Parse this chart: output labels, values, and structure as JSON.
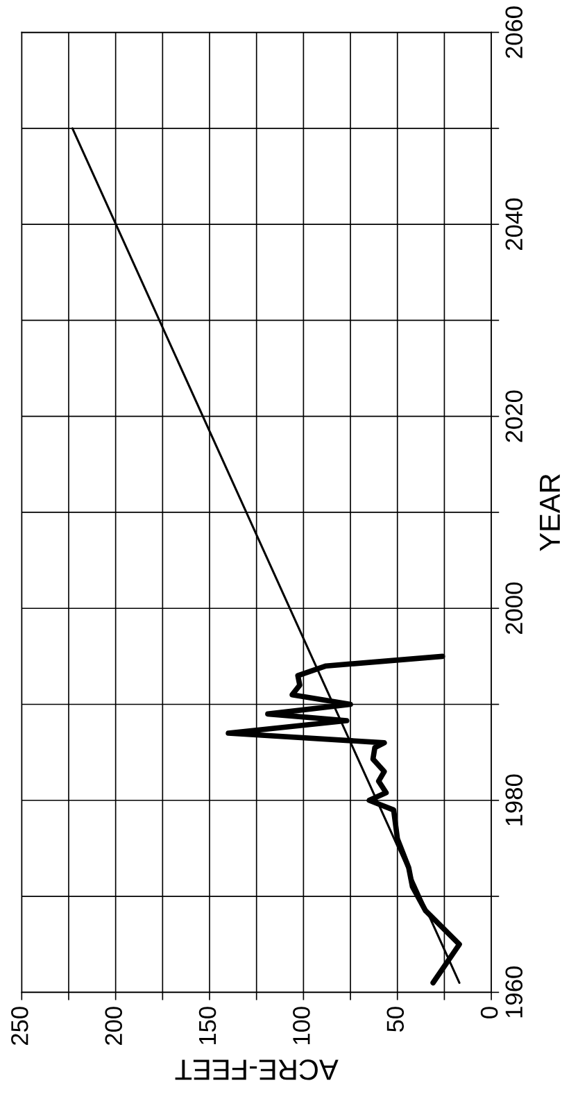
{
  "chart_data": {
    "type": "line",
    "xlabel": "ACRE-FEET",
    "ylabel": "YEAR",
    "xlim": [
      250,
      0
    ],
    "xticks": [
      250,
      {
        "value": 225,
        "label": null
      },
      200,
      {
        "value": 175,
        "label": null
      },
      150,
      {
        "value": 125,
        "label": null
      },
      100,
      {
        "value": 75,
        "label": null
      },
      50,
      {
        "value": 25,
        "label": null
      },
      0
    ],
    "ylim": [
      1960,
      2060
    ],
    "yticks": [
      1960,
      {
        "value": 1970,
        "label": null
      },
      1980,
      {
        "value": 1990,
        "label": null
      },
      2000,
      {
        "value": 2010,
        "label": null
      },
      2020,
      {
        "value": 2030,
        "label": null
      },
      2040,
      {
        "value": 2050,
        "label": null
      },
      2060
    ],
    "grid": true,
    "marker": "none",
    "line_style": "solid",
    "series": [
      {
        "color": "#000000",
        "x": [
          31,
          17,
          35,
          42,
          44,
          50,
          52,
          65,
          56,
          60,
          57,
          63,
          62,
          57,
          140,
          77,
          119,
          75,
          106,
          102,
          103,
          88,
          26
        ],
        "values": [
          1961,
          1965,
          1968.5,
          1971,
          1973,
          1976,
          1979,
          1980,
          1980.8,
          1982,
          1983,
          1984.3,
          1985.5,
          1986,
          1987,
          1988.3,
          1989,
          1990,
          1991,
          1992,
          1993,
          1994,
          1995
        ]
      },
      {
        "type": "line",
        "color": "#000000",
        "x": [
          17,
          223
        ],
        "values": [
          1961,
          2050
        ]
      }
    ]
  }
}
